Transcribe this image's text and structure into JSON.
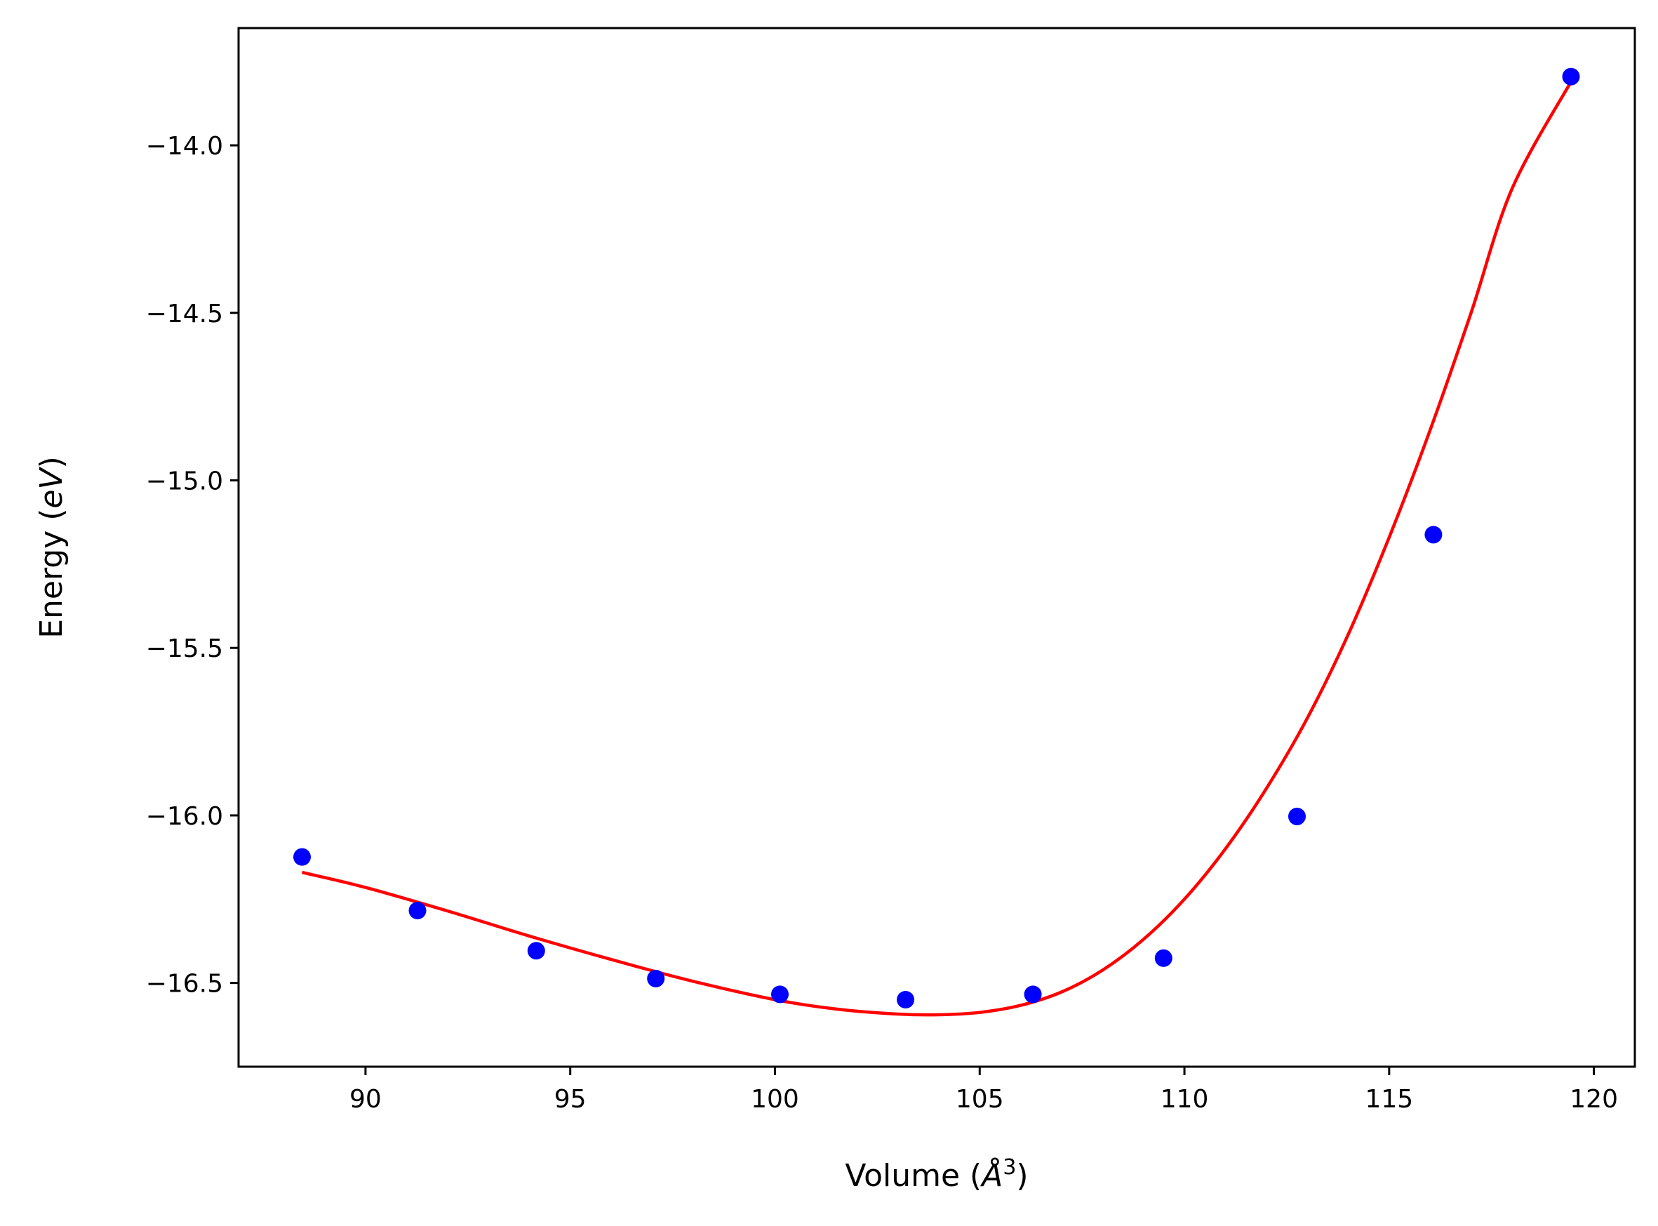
{
  "chart_data": {
    "type": "scatter",
    "xlabel": {
      "prefix": "Volume (",
      "symbol": "Å",
      "sup": "3",
      "suffix": ")"
    },
    "ylabel": {
      "prefix": "Energy (",
      "symbol": "eV",
      "suffix": ")"
    },
    "xlim": [
      86.9,
      121.0
    ],
    "ylim": [
      -16.75,
      -13.65
    ],
    "xticks": [
      90,
      95,
      100,
      105,
      110,
      115,
      120
    ],
    "xtick_labels": [
      "90",
      "95",
      "100",
      "105",
      "110",
      "115",
      "120"
    ],
    "yticks": [
      -14.0,
      -14.5,
      -15.0,
      -15.5,
      -16.0,
      -16.5
    ],
    "ytick_labels": [
      "−14.0",
      "−14.5",
      "−15.0",
      "−15.5",
      "−16.0",
      "−16.5"
    ],
    "grid": false,
    "legend": "none",
    "series": [
      {
        "kind": "points",
        "color": "#0000ff",
        "x": [
          88.45,
          91.27,
          94.17,
          97.09,
          100.12,
          103.19,
          106.3,
          109.49,
          112.75,
          116.08,
          119.44
        ],
        "y": [
          -16.124,
          -16.284,
          -16.404,
          -16.487,
          -16.534,
          -16.55,
          -16.534,
          -16.426,
          -16.003,
          -15.162,
          -13.795
        ]
      },
      {
        "kind": "fit-curve",
        "color": "#ff0000",
        "x": [
          88.45,
          90.0,
          92.0,
          94.0,
          96.0,
          98.0,
          100.0,
          101.5,
          103.0,
          104.0,
          105.0,
          106.0,
          107.0,
          108.0,
          109.0,
          110.0,
          111.0,
          112.0,
          113.0,
          114.0,
          115.0,
          116.0,
          117.0,
          118.0,
          119.44
        ],
        "y": [
          -16.17,
          -16.215,
          -16.285,
          -16.36,
          -16.43,
          -16.495,
          -16.55,
          -16.578,
          -16.593,
          -16.595,
          -16.588,
          -16.567,
          -16.527,
          -16.462,
          -16.37,
          -16.25,
          -16.1,
          -15.92,
          -15.71,
          -15.46,
          -15.17,
          -14.85,
          -14.5,
          -14.13,
          -13.81
        ]
      }
    ]
  }
}
